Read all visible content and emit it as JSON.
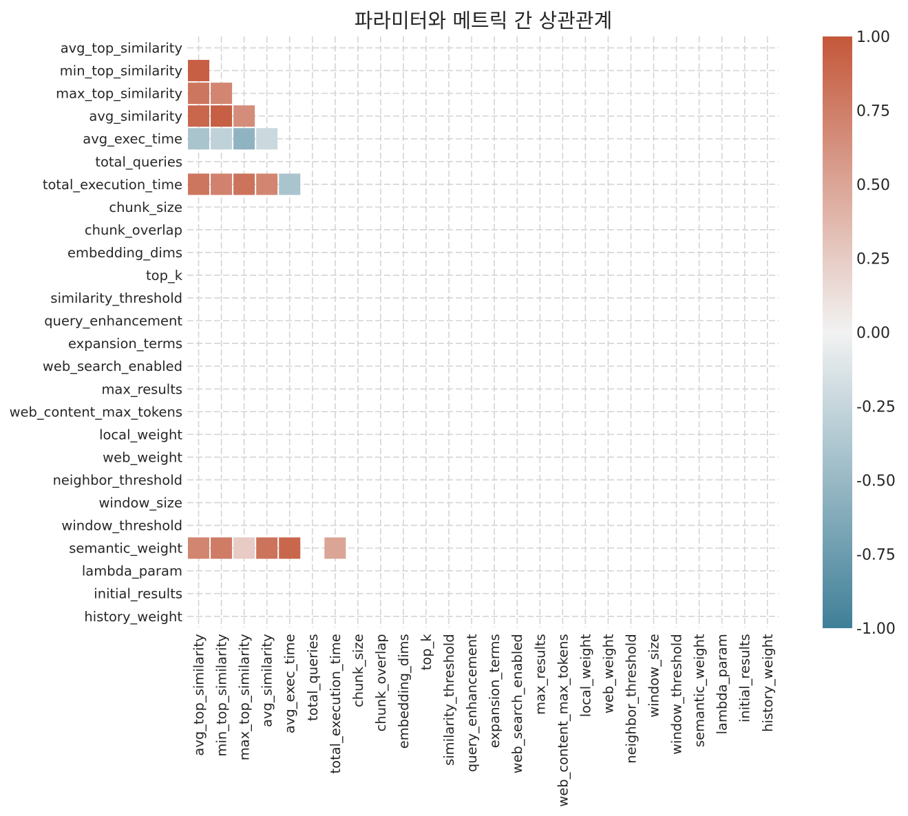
{
  "chart_data": {
    "type": "heatmap",
    "title": "파라미터와 메트릭 간 상관관계",
    "labels": [
      "avg_top_similarity",
      "min_top_similarity",
      "max_top_similarity",
      "avg_similarity",
      "avg_exec_time",
      "total_queries",
      "total_execution_time",
      "chunk_size",
      "chunk_overlap",
      "embedding_dims",
      "top_k",
      "similarity_threshold",
      "query_enhancement",
      "expansion_terms",
      "web_search_enabled",
      "max_results",
      "web_content_max_tokens",
      "local_weight",
      "web_weight",
      "neighbor_threshold",
      "window_size",
      "window_threshold",
      "semantic_weight",
      "lambda_param",
      "initial_results",
      "history_weight"
    ],
    "mask": "upper-triangle-including-diagonal",
    "cells": [
      {
        "row": 1,
        "col": 0,
        "value": 0.95
      },
      {
        "row": 2,
        "col": 0,
        "value": 0.8
      },
      {
        "row": 2,
        "col": 1,
        "value": 0.7
      },
      {
        "row": 3,
        "col": 0,
        "value": 0.9
      },
      {
        "row": 3,
        "col": 1,
        "value": 0.95
      },
      {
        "row": 3,
        "col": 2,
        "value": 0.65
      },
      {
        "row": 4,
        "col": 0,
        "value": -0.4
      },
      {
        "row": 4,
        "col": 1,
        "value": -0.28
      },
      {
        "row": 4,
        "col": 2,
        "value": -0.55
      },
      {
        "row": 4,
        "col": 3,
        "value": -0.22
      },
      {
        "row": 6,
        "col": 0,
        "value": 0.8
      },
      {
        "row": 6,
        "col": 1,
        "value": 0.72
      },
      {
        "row": 6,
        "col": 2,
        "value": 0.82
      },
      {
        "row": 6,
        "col": 3,
        "value": 0.7
      },
      {
        "row": 6,
        "col": 4,
        "value": -0.4
      },
      {
        "row": 22,
        "col": 0,
        "value": 0.7
      },
      {
        "row": 22,
        "col": 1,
        "value": 0.76
      },
      {
        "row": 22,
        "col": 2,
        "value": 0.25
      },
      {
        "row": 22,
        "col": 3,
        "value": 0.82
      },
      {
        "row": 22,
        "col": 4,
        "value": 0.9
      },
      {
        "row": 22,
        "col": 6,
        "value": 0.5
      }
    ],
    "colorbar": {
      "vmin": -1.0,
      "vmax": 1.0,
      "ticks": [
        "1.00",
        "0.75",
        "0.50",
        "0.25",
        "0.00",
        "-0.25",
        "-0.50",
        "-0.75",
        "-1.00"
      ],
      "tick_values": [
        1.0,
        0.75,
        0.5,
        0.25,
        0.0,
        -0.25,
        -0.5,
        -0.75,
        -1.0
      ],
      "colormap": {
        "negative": "#3f7f98",
        "zero": "#f2f2f2",
        "positive": "#c4573a"
      }
    },
    "grid": true,
    "grid_style": "dashed",
    "grid_color": "#d4d4d4",
    "background": "#ffffff"
  }
}
